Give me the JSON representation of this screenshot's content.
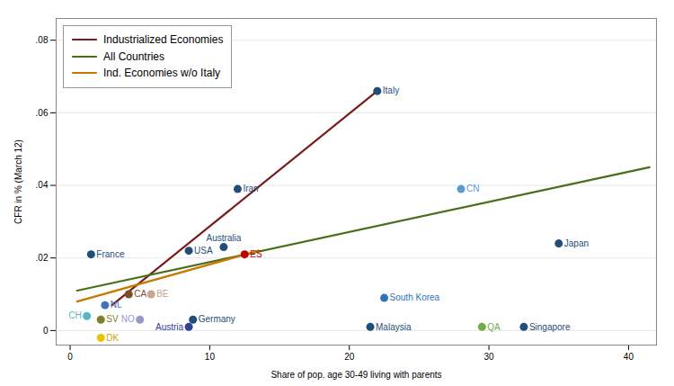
{
  "chart_data": {
    "type": "scatter",
    "xlabel": "Share of pop. age 30-49 living with parents",
    "ylabel": "CFR in % (March 12)",
    "xlim": [
      -1,
      42
    ],
    "ylim": [
      -0.004,
      0.086
    ],
    "xticks": [
      0,
      10,
      20,
      30,
      40
    ],
    "yticks": [
      0,
      {
        "value": 0.02,
        "label": ".02"
      },
      {
        "value": 0.04,
        "label": ".04"
      },
      {
        "value": 0.06,
        "label": ".06"
      },
      {
        "value": 0.08,
        "label": ".08"
      }
    ],
    "grid": "y",
    "legend": "upper left",
    "points": {
      "labels": [
        "France",
        "Iran",
        "Italy",
        "CN",
        "Japan",
        "South Korea",
        "Malaysia",
        "Singapore",
        "QA",
        "Australia",
        "USA",
        "ES",
        "Germany",
        "Austria",
        "NL",
        "CA",
        "BE",
        "CH",
        "SV",
        "NO",
        "DK"
      ],
      "x": [
        1.5,
        12.0,
        22.0,
        28.0,
        35.0,
        22.5,
        21.5,
        32.5,
        29.5,
        11.0,
        8.5,
        12.5,
        8.8,
        8.5,
        2.5,
        4.2,
        5.8,
        1.2,
        2.2,
        5.0,
        2.2
      ],
      "y": [
        0.021,
        0.039,
        0.066,
        0.039,
        0.024,
        0.009,
        0.001,
        0.001,
        0.001,
        0.023,
        0.022,
        0.021,
        0.003,
        0.001,
        0.007,
        0.01,
        0.01,
        0.004,
        0.003,
        0.003,
        -0.002
      ],
      "colors": [
        "#1f4e79",
        "#1f4e79",
        "#1f4e79",
        "#5b9bd5",
        "#1f4e79",
        "#2e75b6",
        "#1f4e79",
        "#1f4e79",
        "#70ad47",
        "#1f4e79",
        "#1f4e79",
        "#c00000",
        "#1f4e79",
        "#2e4099",
        "#4472c4",
        "#7b4f2e",
        "#c9a48e",
        "#5bb5c8",
        "#7f7f2a",
        "#9999cc",
        "#e8c100"
      ],
      "label_colors": [
        "#1f4e79",
        "#1f4e79",
        "#1f4e79",
        "#5b9bd5",
        "#1f4e79",
        "#2e75b6",
        "#1f4e79",
        "#1f4e79",
        "#70ad47",
        "#1f4e79",
        "#1f4e79",
        "#c00000",
        "#1f4e79",
        "#2e4099",
        "#4472c4",
        "#7b4f2e",
        "#c9a48e",
        "#5bb5c8",
        "#7f7f2a",
        "#9999cc",
        "#c8a800"
      ]
    },
    "series": [
      {
        "name": "Industrialized Economies",
        "color": "#7b1a1a",
        "type": "line",
        "x": [
          3.0,
          22.0
        ],
        "values": [
          0.007,
          0.066
        ]
      },
      {
        "name": "All Countries",
        "color": "#4a6e1a",
        "type": "line",
        "x": [
          0.5,
          41.5
        ],
        "values": [
          0.011,
          0.045
        ]
      },
      {
        "name": "Ind. Economies w/o Italy",
        "color": "#c87800",
        "type": "line",
        "x": [
          0.5,
          13.5
        ],
        "values": [
          0.008,
          0.022
        ]
      }
    ]
  }
}
